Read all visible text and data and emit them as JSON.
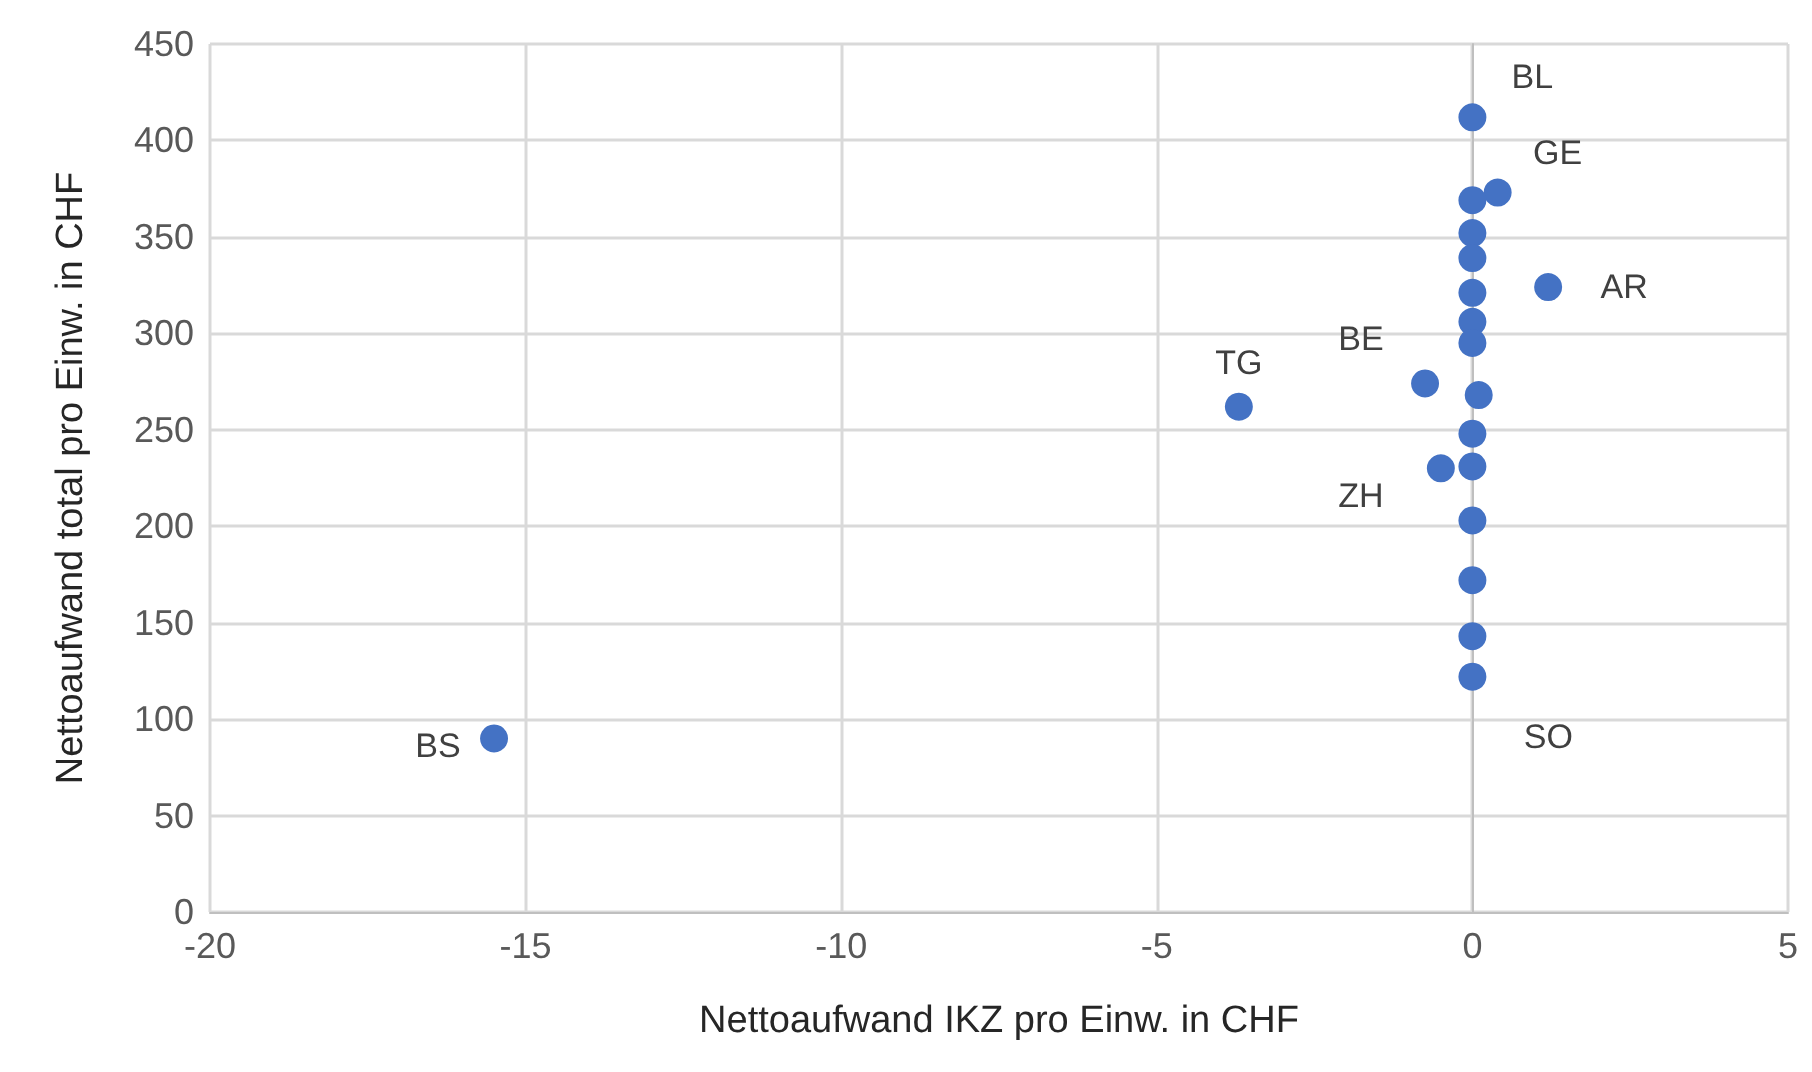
{
  "chart_data": {
    "type": "scatter",
    "xlabel": "Nettoaufwand IKZ pro Einw. in CHF",
    "ylabel": "Nettoaufwand total pro Einw. in CHF",
    "x": [
      0,
      0.4,
      0,
      0,
      0,
      0,
      0,
      0,
      0.1,
      0,
      1.2,
      -0.75,
      -3.7,
      -0.5,
      0,
      0,
      0,
      0,
      0,
      -15.5
    ],
    "series": [
      {
        "color": "#4472c4",
        "values": [
          412,
          373,
          369,
          352,
          339,
          321,
          306,
          295,
          268,
          248,
          324,
          274,
          262,
          230,
          231,
          203,
          172,
          143,
          122,
          90
        ]
      }
    ],
    "xlim": [
      -20,
      5
    ],
    "xticks": [
      -20,
      -15,
      -10,
      -5,
      0,
      5
    ],
    "ylim": [
      0,
      450
    ],
    "yticks": [
      0,
      50,
      100,
      150,
      200,
      250,
      300,
      350,
      400,
      450
    ],
    "grid": true,
    "marker": "circle",
    "annotations": [
      {
        "text": "BL",
        "x": 0,
        "y": 412
      },
      {
        "text": "GE",
        "x": 0.4,
        "y": 373
      },
      {
        "text": "AR",
        "x": 1.2,
        "y": 324
      },
      {
        "text": "BE",
        "x": -0.75,
        "y": 274
      },
      {
        "text": "TG",
        "x": -3.7,
        "y": 262
      },
      {
        "text": "ZH",
        "x": -0.5,
        "y": 230
      },
      {
        "text": "SO",
        "x": 0,
        "y": 122
      },
      {
        "text": "BS",
        "x": -15.5,
        "y": 90
      }
    ]
  }
}
